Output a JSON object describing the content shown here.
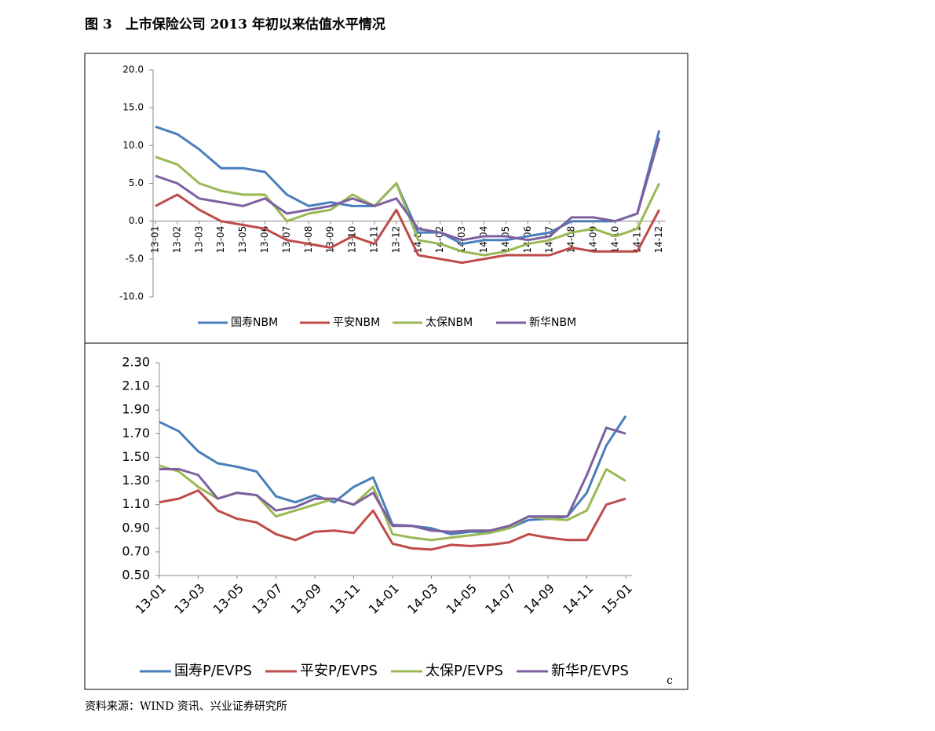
{
  "title": "图 3　上市保险公司 2013 年初以来估值水平情况",
  "source": "资料来源：WIND 资讯、兴业证券研究所",
  "note": "c",
  "chart_data": [
    {
      "type": "line",
      "x": [
        "13-01",
        "13-02",
        "13-03",
        "13-04",
        "13-05",
        "13-06",
        "13-07",
        "13-08",
        "13-09",
        "13-10",
        "13-11",
        "13-12",
        "14-01",
        "14-02",
        "14-03",
        "14-04",
        "14-05",
        "14-06",
        "14-07",
        "14-08",
        "14-09",
        "14-10",
        "14-11",
        "14-12"
      ],
      "ylim": [
        -10,
        20
      ],
      "yticks": [
        {
          "value": -10,
          "label": "-10.0"
        },
        {
          "value": -5,
          "label": "-5.0"
        },
        {
          "value": 0,
          "label": "0.0"
        },
        {
          "value": 5,
          "label": "5.0"
        },
        {
          "value": 10,
          "label": "10.0"
        },
        {
          "value": 15,
          "label": "15.0"
        },
        {
          "value": 20,
          "label": "20.0"
        }
      ],
      "series": [
        {
          "name": "国寿NBM",
          "color": "#4a7ebb",
          "values": [
            12.5,
            11.5,
            9.5,
            7,
            7,
            6.5,
            3.5,
            2,
            2.5,
            2,
            2,
            5,
            -1.5,
            -1.5,
            -3,
            -2.5,
            -2.5,
            -2,
            -1.5,
            0,
            0,
            0,
            1,
            12
          ]
        },
        {
          "name": "平安NBM",
          "color": "#be4b48",
          "values": [
            2,
            3.5,
            1.5,
            0,
            -0.5,
            -1,
            -2.5,
            -3,
            -3.5,
            -2,
            -3,
            1.5,
            -4.5,
            -5,
            -5.5,
            -5,
            -4.5,
            -4.5,
            -4.5,
            -3.5,
            -4,
            -4,
            -4,
            1.5
          ]
        },
        {
          "name": "太保NBM",
          "color": "#98b954",
          "values": [
            8.5,
            7.5,
            5,
            4,
            3.5,
            3.5,
            0,
            1,
            1.5,
            3.5,
            2,
            5,
            -2.5,
            -3,
            -4,
            -4.5,
            -4,
            -3,
            -2.5,
            -1.5,
            -1,
            -2,
            -1,
            5
          ]
        },
        {
          "name": "新华NBM",
          "color": "#7d60a0",
          "values": [
            6,
            5,
            3,
            2.5,
            2,
            3,
            1,
            1.5,
            2,
            3,
            2,
            3,
            -1,
            -1.5,
            -2.5,
            -2,
            -2,
            -2.5,
            -2,
            0.5,
            0.5,
            0,
            1,
            11
          ]
        }
      ]
    },
    {
      "type": "line",
      "x": [
        "13-01",
        "13-02",
        "13-03",
        "13-04",
        "13-05",
        "13-06",
        "13-07",
        "13-08",
        "13-09",
        "13-10",
        "13-11",
        "13-12",
        "14-01",
        "14-02",
        "14-03",
        "14-04",
        "14-05",
        "14-06",
        "14-07",
        "14-08",
        "14-09",
        "14-10",
        "14-11",
        "14-12",
        "15-01"
      ],
      "xticks": [
        "13-01",
        "13-03",
        "13-05",
        "13-07",
        "13-09",
        "13-11",
        "14-01",
        "14-03",
        "14-05",
        "14-07",
        "14-09",
        "14-11",
        "15-01"
      ],
      "ylim": [
        0.5,
        2.3
      ],
      "yticks": [
        {
          "value": 0.5,
          "label": "0.50"
        },
        {
          "value": 0.7,
          "label": "0.70"
        },
        {
          "value": 0.9,
          "label": "0.90"
        },
        {
          "value": 1.1,
          "label": "1.10"
        },
        {
          "value": 1.3,
          "label": "1.30"
        },
        {
          "value": 1.5,
          "label": "1.50"
        },
        {
          "value": 1.7,
          "label": "1.70"
        },
        {
          "value": 1.9,
          "label": "1.90"
        },
        {
          "value": 2.1,
          "label": "2.10"
        },
        {
          "value": 2.3,
          "label": "2.30"
        }
      ],
      "series": [
        {
          "name": "国寿P/EVPS",
          "color": "#4a7ebb",
          "values": [
            1.8,
            1.72,
            1.55,
            1.45,
            1.42,
            1.38,
            1.17,
            1.12,
            1.18,
            1.12,
            1.25,
            1.33,
            0.93,
            0.92,
            0.9,
            0.85,
            0.87,
            0.87,
            0.9,
            0.97,
            0.98,
            1.0,
            1.2,
            1.6,
            1.85
          ]
        },
        {
          "name": "平安P/EVPS",
          "color": "#be4b48",
          "values": [
            1.12,
            1.15,
            1.22,
            1.05,
            0.98,
            0.95,
            0.85,
            0.8,
            0.87,
            0.88,
            0.86,
            1.05,
            0.77,
            0.73,
            0.72,
            0.76,
            0.75,
            0.76,
            0.78,
            0.85,
            0.82,
            0.8,
            0.8,
            1.1,
            1.15
          ]
        },
        {
          "name": "太保P/EVPS",
          "color": "#98b954",
          "values": [
            1.43,
            1.38,
            1.25,
            1.15,
            1.2,
            1.18,
            1.0,
            1.05,
            1.1,
            1.15,
            1.1,
            1.25,
            0.85,
            0.82,
            0.8,
            0.82,
            0.84,
            0.86,
            0.9,
            1.0,
            0.98,
            0.97,
            1.05,
            1.4,
            1.3
          ]
        },
        {
          "name": "新华P/EVPS",
          "color": "#7d60a0",
          "values": [
            1.4,
            1.4,
            1.35,
            1.15,
            1.2,
            1.18,
            1.05,
            1.08,
            1.15,
            1.15,
            1.1,
            1.2,
            0.92,
            0.92,
            0.88,
            0.87,
            0.88,
            0.88,
            0.92,
            1.0,
            1.0,
            1.0,
            1.35,
            1.75,
            1.7
          ]
        }
      ]
    }
  ]
}
